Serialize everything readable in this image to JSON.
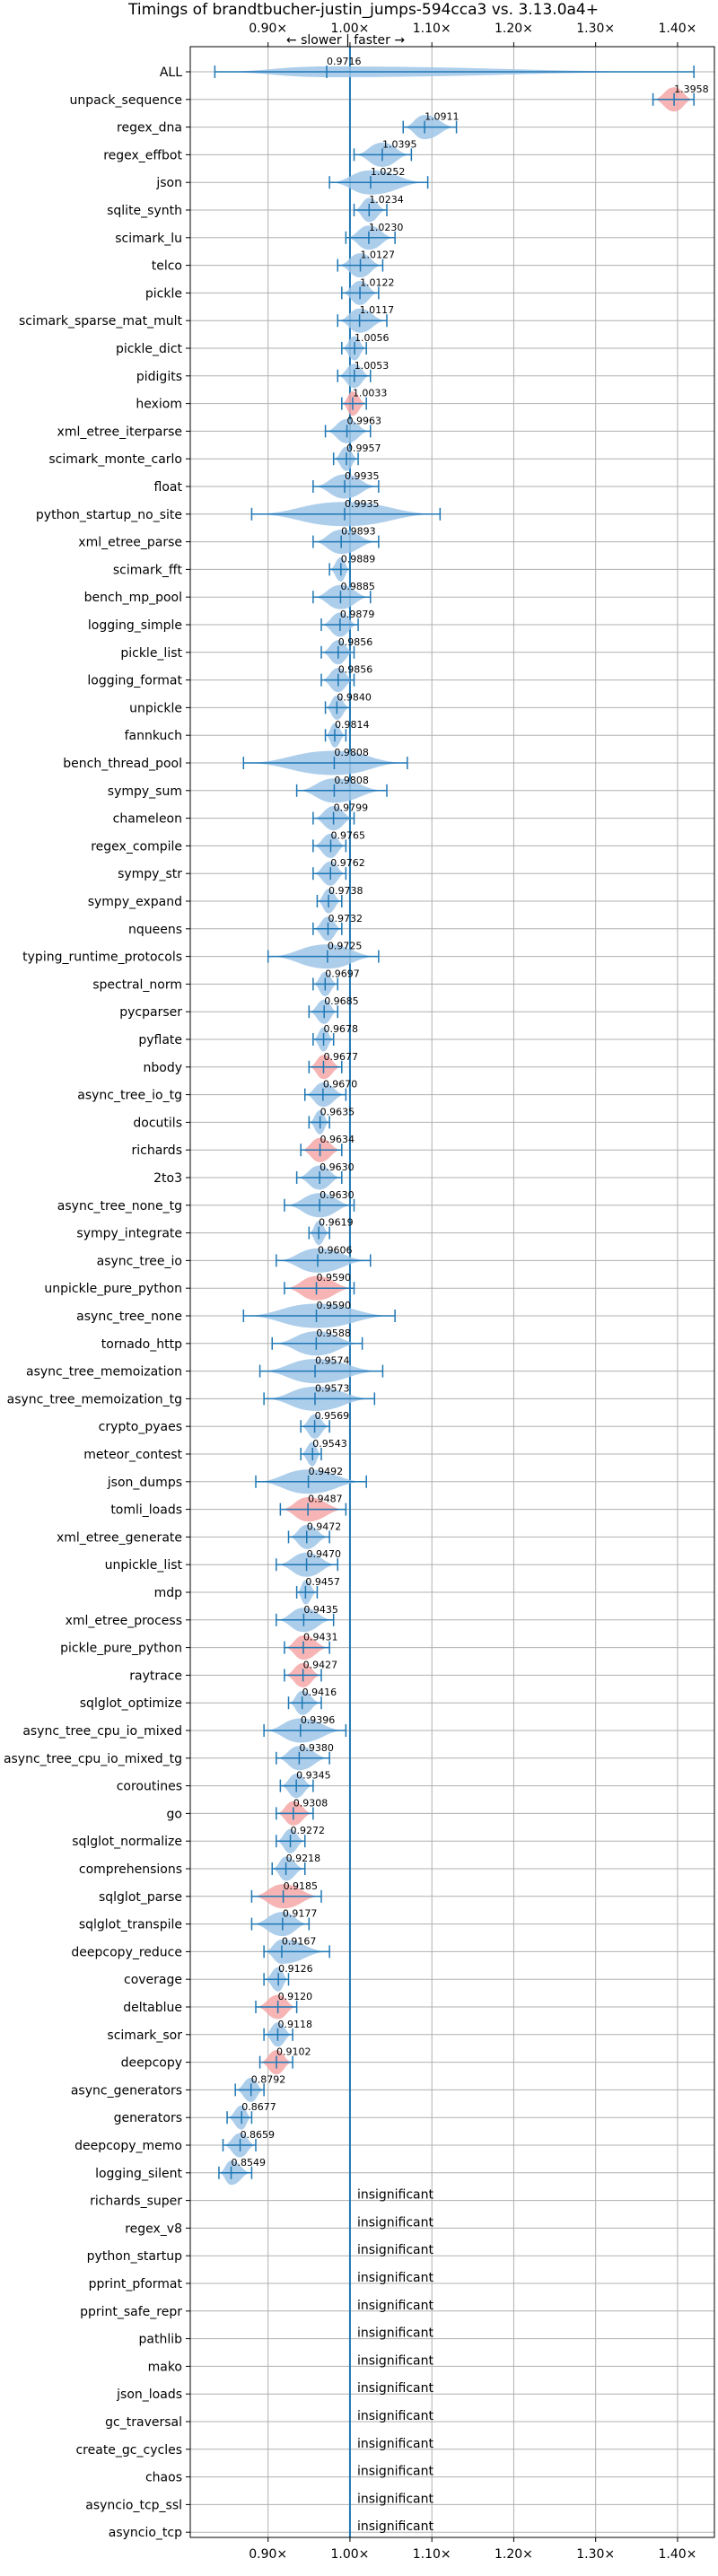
{
  "chart_data": {
    "type": "violin",
    "title": "Timings of brandtbucher-justin_jumps-594cca3 vs. 3.13.0a4+",
    "direction_note": "← slower | faster →",
    "x_ticks": [
      0.9,
      1.0,
      1.1,
      1.2,
      1.3,
      1.4
    ],
    "x_tick_labels": [
      "0.90×",
      "1.00×",
      "1.10×",
      "1.20×",
      "1.30×",
      "1.40×"
    ],
    "xlim": [
      0.805,
      1.445
    ],
    "reference_line": 1.0,
    "grid": true,
    "colors": {
      "normal": "#9fc5e8",
      "highlight": "#f4a7a7",
      "line": "#1f77b4",
      "grid": "#b0b0b0"
    },
    "insignificant_label": "insignificant",
    "categories": [
      "ALL",
      "unpack_sequence",
      "regex_dna",
      "regex_effbot",
      "json",
      "sqlite_synth",
      "scimark_lu",
      "telco",
      "pickle",
      "scimark_sparse_mat_mult",
      "pickle_dict",
      "pidigits",
      "hexiom",
      "xml_etree_iterparse",
      "scimark_monte_carlo",
      "float",
      "python_startup_no_site",
      "xml_etree_parse",
      "scimark_fft",
      "bench_mp_pool",
      "logging_simple",
      "pickle_list",
      "logging_format",
      "unpickle",
      "fannkuch",
      "bench_thread_pool",
      "sympy_sum",
      "chameleon",
      "regex_compile",
      "sympy_str",
      "sympy_expand",
      "nqueens",
      "typing_runtime_protocols",
      "spectral_norm",
      "pycparser",
      "pyflate",
      "nbody",
      "async_tree_io_tg",
      "docutils",
      "richards",
      "2to3",
      "async_tree_none_tg",
      "sympy_integrate",
      "async_tree_io",
      "unpickle_pure_python",
      "async_tree_none",
      "tornado_http",
      "async_tree_memoization",
      "async_tree_memoization_tg",
      "crypto_pyaes",
      "meteor_contest",
      "json_dumps",
      "tomli_loads",
      "xml_etree_generate",
      "unpickle_list",
      "mdp",
      "xml_etree_process",
      "pickle_pure_python",
      "raytrace",
      "sqlglot_optimize",
      "async_tree_cpu_io_mixed",
      "async_tree_cpu_io_mixed_tg",
      "coroutines",
      "go",
      "sqlglot_normalize",
      "comprehensions",
      "sqlglot_parse",
      "sqlglot_transpile",
      "deepcopy_reduce",
      "coverage",
      "deltablue",
      "scimark_sor",
      "deepcopy",
      "async_generators",
      "generators",
      "deepcopy_memo",
      "logging_silent",
      "richards_super",
      "regex_v8",
      "python_startup",
      "pprint_pformat",
      "pprint_safe_repr",
      "pathlib",
      "mako",
      "json_loads",
      "gc_traversal",
      "create_gc_cycles",
      "chaos",
      "asyncio_tcp_ssl",
      "asyncio_tcp"
    ],
    "values": [
      0.9716,
      1.3958,
      1.0911,
      1.0395,
      1.0252,
      1.0234,
      1.023,
      1.0127,
      1.0122,
      1.0117,
      1.0056,
      1.0053,
      1.0033,
      0.9963,
      0.9957,
      0.9935,
      0.9935,
      0.9893,
      0.9889,
      0.9885,
      0.9879,
      0.9856,
      0.9856,
      0.984,
      0.9814,
      0.9808,
      0.9808,
      0.9799,
      0.9765,
      0.9762,
      0.9738,
      0.9732,
      0.9725,
      0.9697,
      0.9685,
      0.9678,
      0.9677,
      0.967,
      0.9635,
      0.9634,
      0.963,
      0.963,
      0.9619,
      0.9606,
      0.959,
      0.959,
      0.9588,
      0.9574,
      0.9573,
      0.9569,
      0.9543,
      0.9492,
      0.9487,
      0.9472,
      0.947,
      0.9457,
      0.9435,
      0.9431,
      0.9427,
      0.9416,
      0.9396,
      0.938,
      0.9345,
      0.9308,
      0.9272,
      0.9218,
      0.9185,
      0.9177,
      0.9167,
      0.9126,
      0.912,
      0.9118,
      0.9102,
      0.8792,
      0.8677,
      0.8659,
      0.8549,
      null,
      null,
      null,
      null,
      null,
      null,
      null,
      null,
      null,
      null,
      null,
      null,
      null
    ],
    "value_labels": [
      "0.9716",
      "1.3958",
      "1.0911",
      "1.0395",
      "1.0252",
      "1.0234",
      "1.0230",
      "1.0127",
      "1.0122",
      "1.0117",
      "1.0056",
      "1.0053",
      "1.0033",
      "0.9963",
      "0.9957",
      "0.9935",
      "0.9935",
      "0.9893",
      "0.9889",
      "0.9885",
      "0.9879",
      "0.9856",
      "0.9856",
      "0.9840",
      "0.9814",
      "0.9808",
      "0.9808",
      "0.9799",
      "0.9765",
      "0.9762",
      "0.9738",
      "0.9732",
      "0.9725",
      "0.9697",
      "0.9685",
      "0.9678",
      "0.9677",
      "0.9670",
      "0.9635",
      "0.9634",
      "0.9630",
      "0.9630",
      "0.9619",
      "0.9606",
      "0.9590",
      "0.9590",
      "0.9588",
      "0.9574",
      "0.9573",
      "0.9569",
      "0.9543",
      "0.9492",
      "0.9487",
      "0.9472",
      "0.9470",
      "0.9457",
      "0.9435",
      "0.9431",
      "0.9427",
      "0.9416",
      "0.9396",
      "0.9380",
      "0.9345",
      "0.9308",
      "0.9272",
      "0.9218",
      "0.9185",
      "0.9177",
      "0.9167",
      "0.9126",
      "0.9120",
      "0.9118",
      "0.9102",
      "0.8792",
      "0.8677",
      "0.8659",
      "0.8549",
      "",
      "",
      "",
      "",
      "",
      "",
      "",
      "",
      "",
      "",
      "",
      "",
      ""
    ],
    "range_min": [
      0.835,
      1.37,
      1.065,
      1.005,
      0.975,
      1.005,
      0.995,
      0.985,
      0.99,
      0.985,
      0.99,
      0.985,
      0.99,
      0.97,
      0.98,
      0.955,
      0.88,
      0.955,
      0.975,
      0.955,
      0.965,
      0.965,
      0.965,
      0.97,
      0.97,
      0.87,
      0.935,
      0.955,
      0.955,
      0.955,
      0.96,
      0.955,
      0.9,
      0.955,
      0.95,
      0.955,
      0.95,
      0.945,
      0.95,
      0.94,
      0.935,
      0.92,
      0.95,
      0.91,
      0.92,
      0.87,
      0.905,
      0.89,
      0.895,
      0.94,
      0.94,
      0.885,
      0.915,
      0.925,
      0.91,
      0.935,
      0.91,
      0.92,
      0.92,
      0.925,
      0.895,
      0.91,
      0.915,
      0.91,
      0.91,
      0.905,
      0.88,
      0.88,
      0.895,
      0.895,
      0.885,
      0.895,
      0.89,
      0.86,
      0.85,
      0.845,
      0.84,
      null,
      null,
      null,
      null,
      null,
      null,
      null,
      null,
      null,
      null,
      null,
      null,
      null
    ],
    "range_max": [
      1.42,
      1.42,
      1.13,
      1.075,
      1.095,
      1.045,
      1.055,
      1.04,
      1.035,
      1.045,
      1.02,
      1.025,
      1.02,
      1.025,
      1.01,
      1.035,
      1.11,
      1.035,
      1.0,
      1.025,
      1.01,
      1.005,
      1.005,
      1.0,
      0.995,
      1.07,
      1.045,
      1.005,
      0.995,
      0.995,
      0.99,
      0.99,
      1.035,
      0.985,
      0.985,
      0.98,
      0.99,
      0.995,
      0.975,
      0.99,
      0.99,
      1.005,
      0.975,
      1.025,
      1.005,
      1.055,
      1.015,
      1.04,
      1.03,
      0.975,
      0.965,
      1.02,
      0.995,
      0.975,
      0.985,
      0.96,
      0.98,
      0.975,
      0.965,
      0.965,
      0.995,
      0.975,
      0.955,
      0.955,
      0.945,
      0.945,
      0.965,
      0.95,
      0.975,
      0.925,
      0.935,
      0.93,
      0.93,
      0.895,
      0.88,
      0.885,
      0.88,
      null,
      null,
      null,
      null,
      null,
      null,
      null,
      null,
      null,
      null,
      null,
      null,
      null
    ],
    "highlighted": [
      "unpack_sequence",
      "hexiom",
      "nbody",
      "richards",
      "unpickle_pure_python",
      "tomli_loads",
      "pickle_pure_python",
      "raytrace",
      "go",
      "sqlglot_parse",
      "deltablue",
      "deepcopy"
    ]
  }
}
